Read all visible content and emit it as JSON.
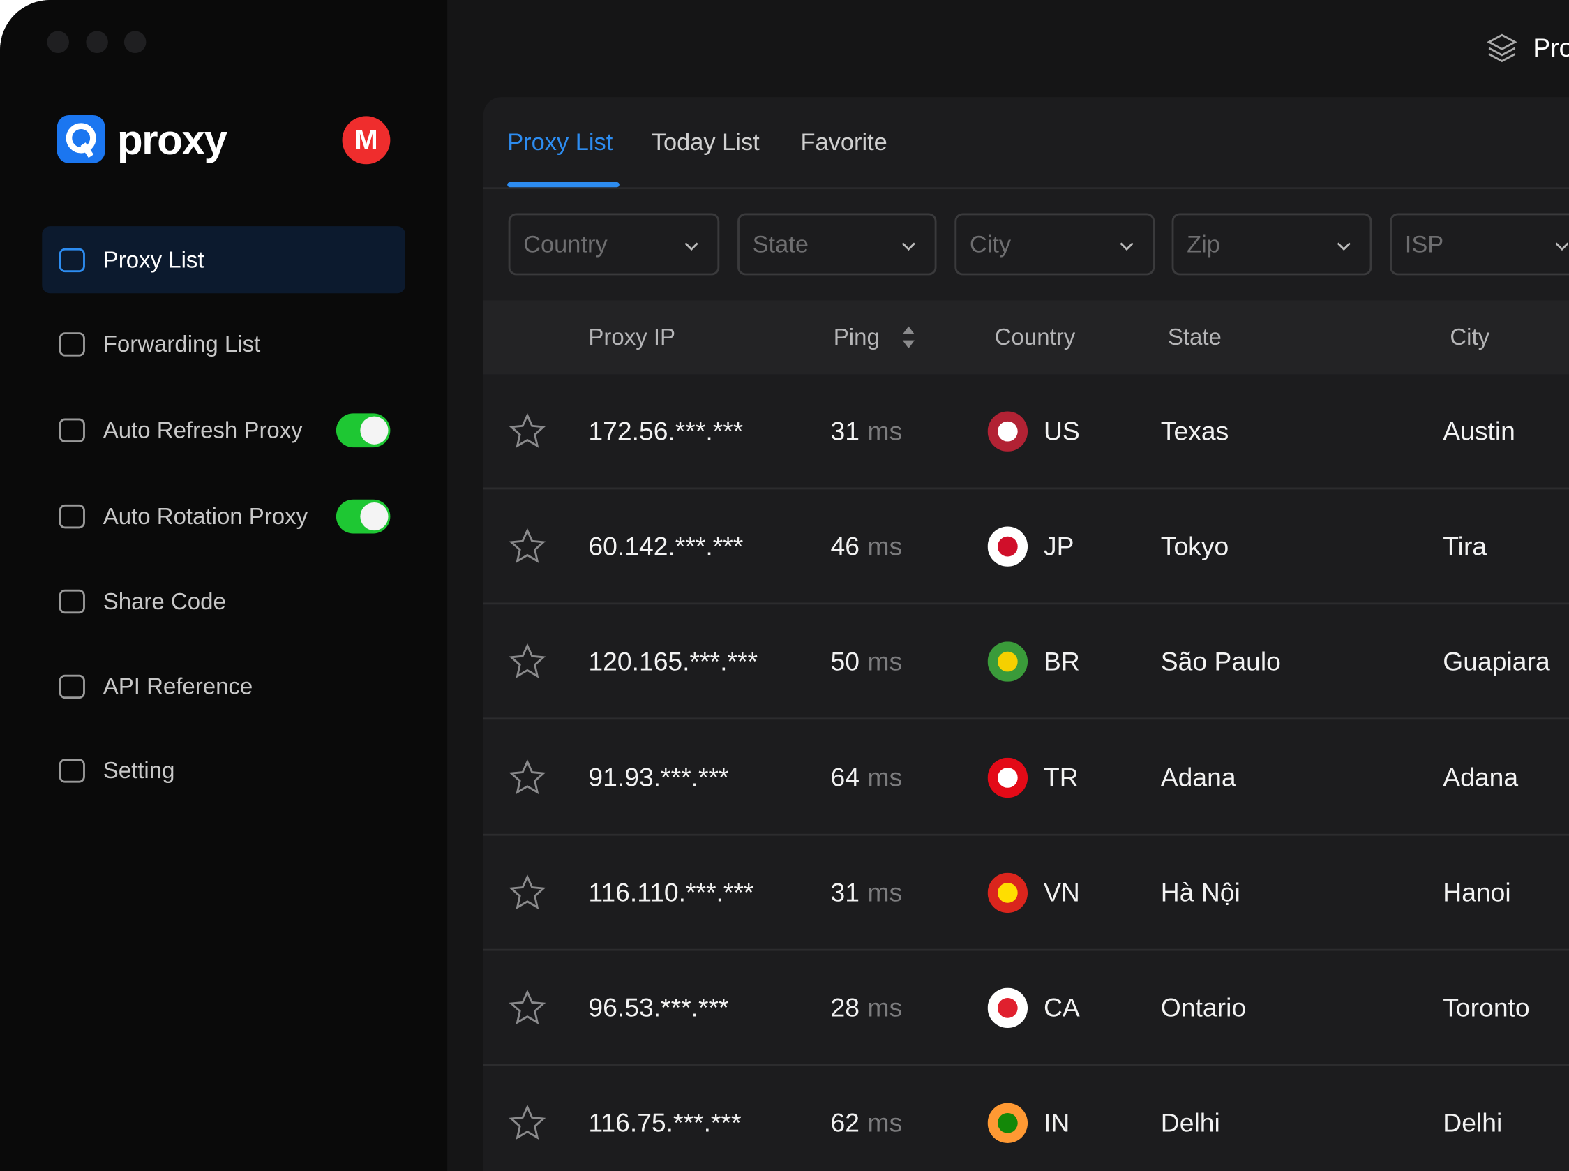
{
  "topbar": {
    "title": "Pro"
  },
  "sidebar": {
    "brand": "proxy",
    "avatar": "M",
    "items": [
      {
        "label": "Proxy List",
        "active": true
      },
      {
        "label": "Forwarding List"
      },
      {
        "label": "Auto Refresh Proxy",
        "toggle": true
      },
      {
        "label": "Auto Rotation Proxy",
        "toggle": true
      },
      {
        "label": "Share Code"
      },
      {
        "label": "API Reference"
      },
      {
        "label": "Setting"
      }
    ]
  },
  "tabs": [
    {
      "label": "Proxy List",
      "active": true
    },
    {
      "label": "Today List"
    },
    {
      "label": "Favorite"
    }
  ],
  "filters": [
    "Country",
    "State",
    "City",
    "Zip",
    "ISP"
  ],
  "table": {
    "headers": [
      "Proxy IP",
      "Ping",
      "Country",
      "State",
      "City"
    ],
    "ping_unit": "ms",
    "rows": [
      {
        "ip": "172.56.***.***",
        "ping": "31",
        "country": "US",
        "flag": [
          "#b22234",
          "#ffffff"
        ],
        "state": "Texas",
        "city": "Austin"
      },
      {
        "ip": "60.142.***.***",
        "ping": "46",
        "country": "JP",
        "flag": [
          "#ffffff",
          "#d00f2a"
        ],
        "state": "Tokyo",
        "city": "Tira"
      },
      {
        "ip": "120.165.***.***",
        "ping": "50",
        "country": "BR",
        "flag": [
          "#3a9b3a",
          "#f5d000"
        ],
        "state": "São Paulo",
        "city": "Guapiara"
      },
      {
        "ip": "91.93.***.***",
        "ping": "64",
        "country": "TR",
        "flag": [
          "#e30a17",
          "#ffffff"
        ],
        "state": "Adana",
        "city": "Adana"
      },
      {
        "ip": "116.110.***.***",
        "ping": "31",
        "country": "VN",
        "flag": [
          "#da251d",
          "#ffde00"
        ],
        "state": "Hà Nội",
        "city": "Hanoi"
      },
      {
        "ip": "96.53.***.***",
        "ping": "28",
        "country": "CA",
        "flag": [
          "#ffffff",
          "#e0202e"
        ],
        "state": "Ontario",
        "city": "Toronto"
      },
      {
        "ip": "116.75.***.***",
        "ping": "62",
        "country": "IN",
        "flag": [
          "#ff9933",
          "#138808"
        ],
        "state": "Delhi",
        "city": "Delhi"
      }
    ]
  }
}
